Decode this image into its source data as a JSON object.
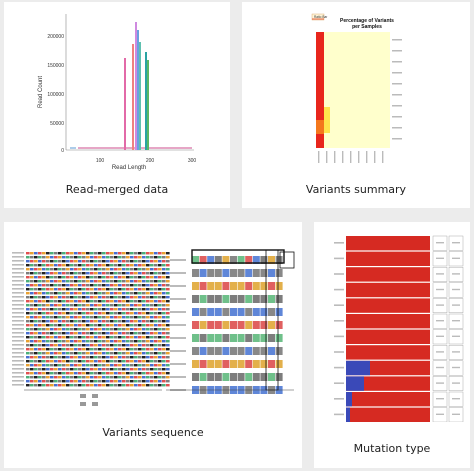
{
  "cards": [
    {
      "caption": "Read-merged data",
      "chart": {
        "ylabel": "Read Count",
        "xlabel": "Read Length",
        "yticks": [
          "200000",
          "150000",
          "100000",
          "50000",
          "0"
        ],
        "xticks": [
          "100",
          "200",
          "300"
        ]
      }
    },
    {
      "caption": "Variants summary",
      "chart": {
        "title_line1": "Percentage of Variants",
        "title_line2": "per Samples",
        "legend_label": "Ratio Bar"
      }
    },
    {
      "caption": "Variants sequence"
    },
    {
      "caption": "Mutation type"
    }
  ],
  "colors": {
    "page_bg": "#ececec",
    "card_bg": "#ffffff",
    "heat_red": "#e8261c",
    "heat_yellow": "#ffffcc",
    "mutation_red": "#d62a22",
    "mutation_blue": "#3a49b8",
    "seq_red": "#e05050",
    "seq_green": "#4caf7a",
    "seq_blue": "#4a6fd0",
    "seq_gray": "#7d7d7d"
  }
}
